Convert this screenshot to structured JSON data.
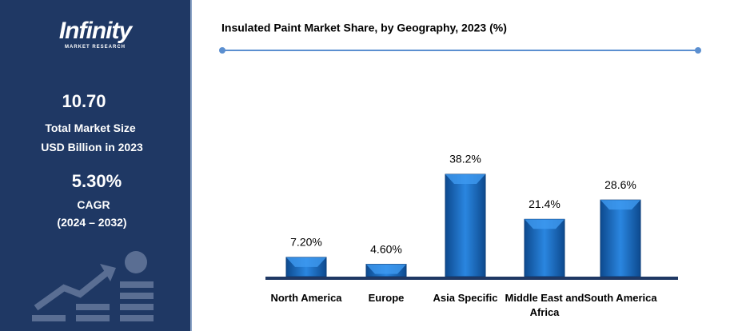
{
  "sidebar": {
    "logo": "Infinity",
    "logo_sub": "MARKET RESEARCH",
    "market_size": "10.70",
    "market_size_label": "Total Market Size",
    "market_size_unit": "USD Billion in 2023",
    "cagr": "5.30%",
    "cagr_label": "CAGR",
    "cagr_period": "(2024 – 2032)"
  },
  "chart_data": {
    "type": "bar",
    "title": "Insulated Paint Market Share, by Geography, 2023 (%)",
    "categories": [
      "North America",
      "Europe",
      "Asia Specific",
      "Middle East and Africa",
      "South America"
    ],
    "values": [
      7.2,
      4.6,
      38.2,
      21.4,
      28.6
    ],
    "value_labels": [
      "7.20%",
      "4.60%",
      "38.2%",
      "21.4%",
      "28.6%"
    ],
    "color": "#1f6fc5"
  }
}
